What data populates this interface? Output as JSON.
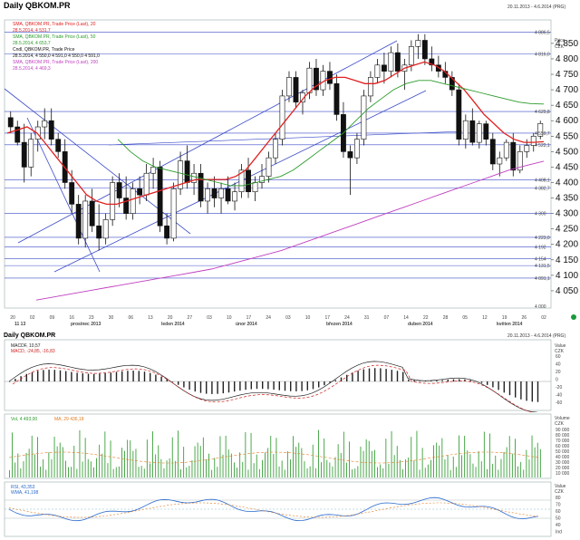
{
  "main_panel": {
    "title": "Daily QBKOM.PR",
    "date_range": "20.11.2013 - 4.6.2014 (PRG)",
    "value_header": [
      "Price",
      "CZK"
    ],
    "legend": [
      {
        "text": "SMA, QBKOM.PR, Trade Price (Last), 20",
        "color": "#e02020"
      },
      {
        "text": "28.5.2014, 4 531,7",
        "color": "#e02020"
      },
      {
        "text": "SMA, QBKOM.PR, Trade Price (Last), 50",
        "color": "#2a9a2a"
      },
      {
        "text": "28.5.2014, 4 653,7",
        "color": "#2a9a2a"
      },
      {
        "text": "Cndl, QBKOM.PR, Trade Price",
        "color": "#111111"
      },
      {
        "text": "28.5.2014, 4 550,0  4 591,0  4 550,0  4 591,0",
        "color": "#111111"
      },
      {
        "text": "SMA, QBKOM.PR, Trade Price (Last), 200",
        "color": "#c040c0"
      },
      {
        "text": "28.5.2014, 4 469,3",
        "color": "#c040c0"
      }
    ],
    "hline_labels": [
      "4 886,5",
      "4 816,0",
      "4 629,8",
      "4 559,7",
      "4 522,1",
      "4 408,1",
      "4 382,7",
      "4 300",
      "4 223,0",
      "4 192",
      "4 154",
      "4 131,5",
      "4 091,1",
      "4 000"
    ],
    "y_ticks": [
      "4 850",
      "4 800",
      "4 750",
      "4 700",
      "4 650",
      "4 600",
      "4 550",
      "4 500",
      "4 450",
      "4 400",
      "4 350",
      "4 300",
      "4 250",
      "4 200",
      "4 150",
      "4 100",
      "4 050"
    ],
    "x_ticks": [
      "20",
      "02",
      "09",
      "16",
      "23",
      "30",
      "06",
      "13",
      "20",
      "27",
      "03",
      "10",
      "17",
      "24",
      "03",
      "10",
      "17",
      "24",
      "31",
      "07",
      "14",
      "22",
      "28",
      "05",
      "12",
      "19",
      "26",
      "02"
    ],
    "x_sub_labels": [
      "11 13",
      "prosinec 2013",
      "leden 2014",
      "únor 2014",
      "březen 2014",
      "duben 2014",
      "květen 2014"
    ]
  },
  "macd_panel": {
    "title": "Daily QBKOM.PR",
    "date_range": "20.11.2013 - 4.6.2014 (PRG)",
    "legend": [
      {
        "text": "MACDF, 10,57",
        "color": "#222222"
      },
      {
        "text": "MACD, -24,85, -16,83",
        "color": "#cc2020"
      }
    ],
    "value_header": [
      "Value",
      "CZK"
    ],
    "y_ticks": [
      "60",
      "40",
      "20",
      "0",
      "-20",
      "-40",
      "-60"
    ]
  },
  "volume_panel": {
    "legend": [
      {
        "text": "Vol, 4 493,00",
        "color": "#2a9a2a"
      },
      {
        "text": "MA, 29 436,18",
        "color": "#e07a20"
      }
    ],
    "value_header": [
      "Volume",
      "CZK"
    ],
    "y_ticks": [
      "90 000",
      "80 000",
      "70 000",
      "60 000",
      "50 000",
      "40 000",
      "30 000",
      "20 000",
      "10 000"
    ]
  },
  "rsi_panel": {
    "legend": [
      {
        "text": "RSI, 43,353",
        "color": "#2a6acc"
      },
      {
        "text": "WMA, 41,198",
        "color": "#2a6acc"
      }
    ],
    "value_header": [
      "Value",
      "CZK"
    ],
    "y_ticks": [
      "80",
      "70",
      "60",
      "50",
      "40",
      "Ind"
    ]
  },
  "chart_data": {
    "type": "candlestick",
    "title": "Daily QBKOM.PR",
    "ylim": [
      4000,
      4920
    ],
    "horizontal_levels": [
      4886.5,
      4816.0,
      4629.8,
      4559.7,
      4522.1,
      4408.1,
      4382.7,
      4300,
      4223.0,
      4192,
      4154,
      4131.5,
      4091.1
    ],
    "candles": [
      [
        4610,
        4630,
        4560,
        4580
      ],
      [
        4580,
        4600,
        4520,
        4530
      ],
      [
        4530,
        4590,
        4400,
        4450
      ],
      [
        4450,
        4560,
        4420,
        4540
      ],
      [
        4540,
        4600,
        4500,
        4580
      ],
      [
        4580,
        4640,
        4540,
        4600
      ],
      [
        4600,
        4640,
        4520,
        4540
      ],
      [
        4540,
        4560,
        4480,
        4500
      ],
      [
        4500,
        4540,
        4380,
        4400
      ],
      [
        4400,
        4440,
        4300,
        4330
      ],
      [
        4330,
        4360,
        4200,
        4220
      ],
      [
        4220,
        4360,
        4190,
        4340
      ],
      [
        4340,
        4380,
        4240,
        4260
      ],
      [
        4260,
        4330,
        4180,
        4220
      ],
      [
        4220,
        4300,
        4200,
        4280
      ],
      [
        4280,
        4420,
        4260,
        4400
      ],
      [
        4400,
        4430,
        4320,
        4350
      ],
      [
        4350,
        4420,
        4280,
        4300
      ],
      [
        4300,
        4400,
        4280,
        4380
      ],
      [
        4380,
        4420,
        4330,
        4360
      ],
      [
        4360,
        4460,
        4340,
        4430
      ],
      [
        4430,
        4480,
        4380,
        4450
      ],
      [
        4450,
        4470,
        4240,
        4260
      ],
      [
        4260,
        4300,
        4200,
        4220
      ],
      [
        4220,
        4400,
        4210,
        4380
      ],
      [
        4380,
        4500,
        4360,
        4470
      ],
      [
        4470,
        4520,
        4380,
        4400
      ],
      [
        4400,
        4460,
        4360,
        4430
      ],
      [
        4430,
        4460,
        4320,
        4340
      ],
      [
        4340,
        4400,
        4300,
        4380
      ],
      [
        4380,
        4420,
        4320,
        4350
      ],
      [
        4350,
        4400,
        4300,
        4380
      ],
      [
        4380,
        4420,
        4330,
        4340
      ],
      [
        4340,
        4400,
        4310,
        4370
      ],
      [
        4370,
        4460,
        4350,
        4440
      ],
      [
        4440,
        4480,
        4350,
        4370
      ],
      [
        4370,
        4420,
        4340,
        4400
      ],
      [
        4400,
        4460,
        4380,
        4420
      ],
      [
        4420,
        4500,
        4400,
        4480
      ],
      [
        4480,
        4560,
        4460,
        4540
      ],
      [
        4540,
        4700,
        4520,
        4680
      ],
      [
        4680,
        4760,
        4660,
        4740
      ],
      [
        4740,
        4760,
        4640,
        4660
      ],
      [
        4660,
        4700,
        4620,
        4690
      ],
      [
        4690,
        4790,
        4670,
        4770
      ],
      [
        4770,
        4800,
        4680,
        4700
      ],
      [
        4700,
        4780,
        4680,
        4760
      ],
      [
        4760,
        4790,
        4700,
        4720
      ],
      [
        4720,
        4750,
        4600,
        4620
      ],
      [
        4620,
        4660,
        4480,
        4500
      ],
      [
        4500,
        4520,
        4360,
        4480
      ],
      [
        4480,
        4560,
        4460,
        4540
      ],
      [
        4540,
        4700,
        4520,
        4680
      ],
      [
        4680,
        4760,
        4660,
        4740
      ],
      [
        4740,
        4800,
        4720,
        4780
      ],
      [
        4780,
        4820,
        4720,
        4760
      ],
      [
        4760,
        4840,
        4740,
        4820
      ],
      [
        4820,
        4850,
        4740,
        4760
      ],
      [
        4760,
        4800,
        4700,
        4780
      ],
      [
        4780,
        4860,
        4760,
        4840
      ],
      [
        4840,
        4880,
        4800,
        4860
      ],
      [
        4860,
        4880,
        4780,
        4800
      ],
      [
        4800,
        4840,
        4760,
        4780
      ],
      [
        4780,
        4810,
        4740,
        4760
      ],
      [
        4760,
        4790,
        4720,
        4740
      ],
      [
        4740,
        4760,
        4680,
        4700
      ],
      [
        4700,
        4720,
        4520,
        4540
      ],
      [
        4540,
        4620,
        4510,
        4600
      ],
      [
        4600,
        4640,
        4520,
        4530
      ],
      [
        4530,
        4600,
        4510,
        4590
      ],
      [
        4590,
        4600,
        4520,
        4540
      ],
      [
        4540,
        4560,
        4440,
        4460
      ],
      [
        4460,
        4500,
        4420,
        4480
      ],
      [
        4480,
        4540,
        4470,
        4530
      ],
      [
        4530,
        4560,
        4420,
        4440
      ],
      [
        4440,
        4520,
        4430,
        4500
      ],
      [
        4500,
        4540,
        4480,
        4520
      ],
      [
        4520,
        4560,
        4500,
        4550
      ],
      [
        4550,
        4600,
        4540,
        4591
      ]
    ],
    "series": [
      {
        "name": "SMA, QBKOM.PR, Trade Price (Last), 20",
        "color": "#e02020",
        "values": [
          4560,
          4570,
          4580,
          4560,
          4520,
          4480,
          4440,
          4400,
          4360,
          4340,
          4330,
          4330,
          4340,
          4350,
          4360,
          4370,
          4380,
          4390,
          4400,
          4410,
          4410,
          4410,
          4410,
          4420,
          4440,
          4480,
          4520,
          4560,
          4600,
          4640,
          4680,
          4710,
          4730,
          4740,
          4740,
          4730,
          4720,
          4720,
          4730,
          4750,
          4770,
          4780,
          4790,
          4780,
          4760,
          4730,
          4700,
          4660,
          4620,
          4590,
          4560,
          4540,
          4530,
          4530,
          4532
        ]
      },
      {
        "name": "SMA, QBKOM.PR, Trade Price (Last), 50",
        "color": "#2a9a2a",
        "values": [
          4540,
          4500,
          4470,
          4450,
          4440,
          4430,
          4420,
          4410,
          4400,
          4390,
          4390,
          4400,
          4410,
          4420,
          4440,
          4470,
          4500,
          4530,
          4560,
          4600,
          4640,
          4670,
          4700,
          4720,
          4730,
          4730,
          4720,
          4710,
          4700,
          4690,
          4680,
          4670,
          4660,
          4655,
          4654
        ]
      },
      {
        "name": "SMA, QBKOM.PR, Trade Price (Last), 200",
        "color": "#c040c0",
        "values": [
          4020,
          4030,
          4040,
          4050,
          4060,
          4070,
          4080,
          4090,
          4100,
          4110,
          4120,
          4135,
          4150,
          4165,
          4180,
          4200,
          4220,
          4240,
          4260,
          4280,
          4300,
          4320,
          4340,
          4360,
          4380,
          4400,
          4420,
          4440,
          4455,
          4469
        ]
      }
    ]
  }
}
